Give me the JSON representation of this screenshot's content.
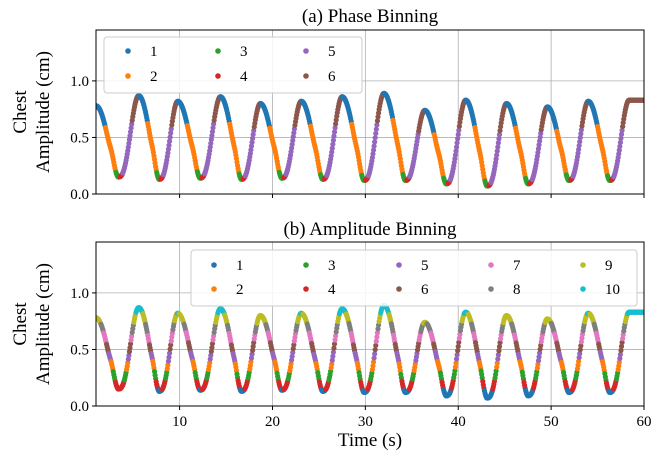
{
  "chart_data": [
    {
      "type": "scatter",
      "title": "(a) Phase Binning",
      "xlabel": "",
      "ylabel": [
        "Chest",
        "Amplitude (cm)"
      ],
      "xlim": [
        1,
        60
      ],
      "ylim": [
        0.0,
        1.45
      ],
      "xticks": [
        10,
        20,
        30,
        40,
        50,
        60
      ],
      "xtick_labels_shown": false,
      "yticks": [
        0.0,
        0.5,
        1.0
      ],
      "ytick_labels": [
        "0.0",
        "0.5",
        "1.0"
      ],
      "grid": true,
      "legend": {
        "placement": "top-left",
        "columns": 3,
        "entries": [
          "1",
          "2",
          "3",
          "4",
          "5",
          "6"
        ]
      },
      "colors": [
        "#1f77b4",
        "#ff7f0e",
        "#2ca02c",
        "#d62728",
        "#9467bd",
        "#8c564b"
      ],
      "binning": "phase",
      "signal": {
        "peak_times": [
          1.0,
          5.6,
          9.8,
          14.4,
          18.7,
          23.1,
          27.5,
          32.0,
          36.4,
          40.8,
          45.2,
          49.6,
          54.0,
          58.4
        ],
        "peak_values": [
          0.78,
          0.87,
          0.82,
          0.86,
          0.8,
          0.82,
          0.86,
          0.89,
          0.74,
          0.83,
          0.8,
          0.77,
          0.82,
          0.83
        ],
        "trough_values": [
          0.15,
          0.13,
          0.14,
          0.13,
          0.14,
          0.13,
          0.12,
          0.12,
          0.09,
          0.07,
          0.09,
          0.12,
          0.12
        ]
      }
    },
    {
      "type": "scatter",
      "title": "(b) Amplitude Binning",
      "xlabel": "Time (s)",
      "ylabel": [
        "Chest",
        "Amplitude (cm)"
      ],
      "xlim": [
        1,
        60
      ],
      "ylim": [
        0.0,
        1.45
      ],
      "xticks": [
        10,
        20,
        30,
        40,
        50,
        60
      ],
      "xtick_labels": [
        "10",
        "20",
        "30",
        "40",
        "50",
        "60"
      ],
      "yticks": [
        0.0,
        0.5,
        1.0
      ],
      "ytick_labels": [
        "0.0",
        "0.5",
        "1.0"
      ],
      "grid": true,
      "legend": {
        "placement": "top-right",
        "columns": 5,
        "entries": [
          "1",
          "2",
          "3",
          "4",
          "5",
          "6",
          "7",
          "8",
          "9",
          "10"
        ]
      },
      "colors": [
        "#1f77b4",
        "#ff7f0e",
        "#2ca02c",
        "#d62728",
        "#9467bd",
        "#8c564b",
        "#e377c2",
        "#7f7f7f",
        "#bcbd22",
        "#17becf"
      ],
      "binning": "amplitude",
      "signal": {
        "peak_times": [
          1.0,
          5.6,
          9.8,
          14.4,
          18.7,
          23.1,
          27.5,
          32.0,
          36.4,
          40.8,
          45.2,
          49.6,
          54.0,
          58.4
        ],
        "peak_values": [
          0.78,
          0.87,
          0.82,
          0.86,
          0.8,
          0.82,
          0.86,
          0.89,
          0.74,
          0.83,
          0.8,
          0.77,
          0.82,
          0.83
        ],
        "trough_values": [
          0.15,
          0.13,
          0.14,
          0.13,
          0.14,
          0.13,
          0.12,
          0.12,
          0.09,
          0.07,
          0.09,
          0.12,
          0.12
        ]
      }
    }
  ]
}
